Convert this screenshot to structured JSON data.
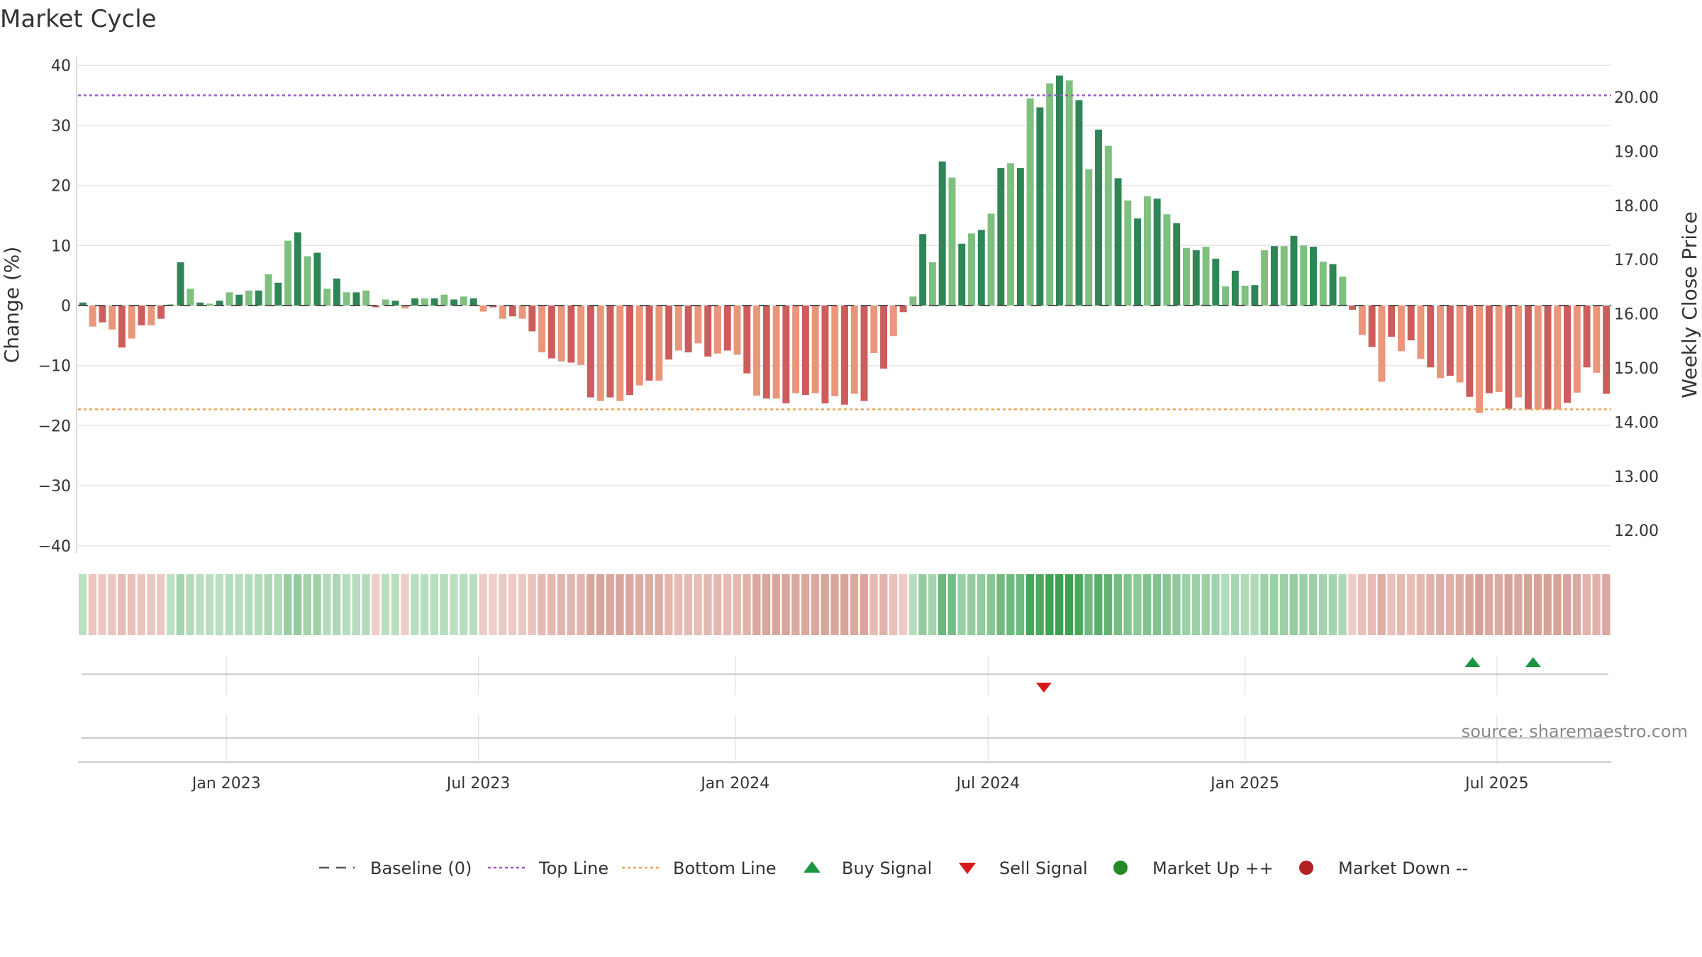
{
  "title": "Market Cycle",
  "source_text": "source: sharemaestro.com",
  "colors": {
    "up_strong": "#2e8555",
    "up_light": "#7fbf7f",
    "down_strong": "#cd5c5c",
    "down_light": "#e9967a",
    "top_line": "#9b59d0",
    "bottom_line": "#f0a050",
    "baseline": "#555555",
    "buy_signal": "#1a9641",
    "sell_signal": "#d7191c",
    "market_up": "#228b22",
    "market_down": "#b22222",
    "grid": "#e6e6e6"
  },
  "legend": [
    {
      "label": "Baseline (0)",
      "kind": "dash"
    },
    {
      "label": "Top Line",
      "kind": "dot-purple"
    },
    {
      "label": "Bottom Line",
      "kind": "dot-orange"
    },
    {
      "label": "Buy Signal",
      "kind": "tri-up"
    },
    {
      "label": "Sell Signal",
      "kind": "tri-down"
    },
    {
      "label": "Market Up ++",
      "kind": "circle-green"
    },
    {
      "label": "Market Down --",
      "kind": "circle-red"
    }
  ],
  "chart_data": {
    "type": "bar",
    "title": "Market Cycle",
    "ylabel": "Change (%)",
    "y2label": "Weekly Close Price",
    "ylim": [
      -40,
      40
    ],
    "y2lim": [
      12.0,
      20.0
    ],
    "yticks": [
      "40",
      "30",
      "20",
      "10",
      "0",
      "−10",
      "−20",
      "−30",
      "−40"
    ],
    "y2ticks": [
      "20.00",
      "19.00",
      "18.00",
      "17.00",
      "16.00",
      "15.00",
      "14.00",
      "13.00",
      "12.00"
    ],
    "xticks": [
      "Jan 2023",
      "Jul 2023",
      "Jan 2024",
      "Jul 2024",
      "Jan 2025",
      "Jul 2025"
    ],
    "xtick_weeks": [
      15.2,
      41,
      67.3,
      93.2,
      119.5,
      145.3
    ],
    "top_line": 35,
    "bottom_line": -17.3,
    "baseline": 0,
    "grid": true,
    "legend_position": "bottom",
    "values": [
      0.5,
      -3.5,
      -2.8,
      -4.0,
      -7.0,
      -5.5,
      -3.3,
      -3.3,
      -2.2,
      0.2,
      7.2,
      2.8,
      0.5,
      0.3,
      0.8,
      2.2,
      1.8,
      2.5,
      2.5,
      5.2,
      3.8,
      10.8,
      12.2,
      8.2,
      8.8,
      2.8,
      4.5,
      2.2,
      2.2,
      2.5,
      -0.3,
      1.0,
      0.8,
      -0.5,
      1.2,
      1.2,
      1.2,
      1.8,
      1.0,
      1.5,
      1.2,
      -1.0,
      -0.3,
      -2.2,
      -1.8,
      -2.2,
      -4.3,
      -7.8,
      -8.8,
      -9.3,
      -9.5,
      -9.9,
      -15.3,
      -15.9,
      -15.3,
      -15.9,
      -14.9,
      -13.3,
      -12.5,
      -12.5,
      -9.0,
      -7.5,
      -7.8,
      -6.3,
      -8.5,
      -8.0,
      -7.5,
      -8.2,
      -11.3,
      -15.0,
      -15.5,
      -15.5,
      -16.3,
      -14.6,
      -14.9,
      -14.6,
      -16.3,
      -15.1,
      -16.5,
      -14.7,
      -15.9,
      -7.9,
      -10.5,
      -5.1,
      -1.1,
      1.5,
      11.9,
      7.2,
      24.0,
      21.3,
      10.3,
      12.0,
      12.6,
      15.3,
      22.9,
      23.7,
      22.9,
      34.5,
      33.0,
      37.0,
      38.3,
      37.5,
      34.2,
      22.7,
      29.3,
      26.6,
      21.2,
      17.5,
      14.5,
      18.2,
      17.8,
      15.2,
      13.7,
      9.6,
      9.2,
      9.8,
      7.8,
      3.2,
      5.8,
      3.3,
      3.4,
      9.2,
      9.9,
      9.9,
      11.6,
      10.0,
      9.8,
      7.3,
      6.9,
      4.8,
      -0.7,
      -4.9,
      -6.9,
      -12.7,
      -5.2,
      -7.6,
      -5.8,
      -8.9,
      -10.3,
      -12.1,
      -11.7,
      -12.8,
      -15.2,
      -17.9,
      -14.6,
      -14.4,
      -17.2,
      -15.3,
      -17.3,
      -17.3,
      -17.3,
      -17.3,
      -16.2,
      -14.5,
      -10.3,
      -11.2,
      -14.7
    ],
    "buy_signals": [
      142.8,
      149
    ],
    "sell_signals": [
      98.9
    ]
  }
}
